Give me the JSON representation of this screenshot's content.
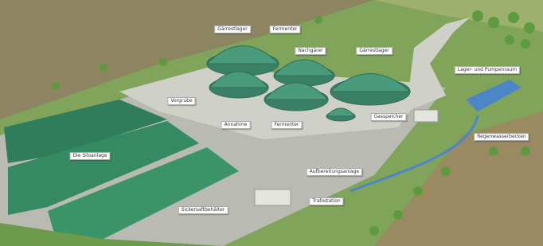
{
  "labels": [
    "Gärrestlager",
    "Fermenter",
    "Nachgärer",
    "Gärrestlager",
    "Lager- und Pumpenraum",
    "Vorgrube",
    "Annahme",
    "Fermenter",
    "Gasspeicher",
    "Regenwasserbecken",
    "Die Siloanlage",
    "Aufbereitungsanlage",
    "Trafostation",
    "Sickersaftbehälter"
  ]
}
